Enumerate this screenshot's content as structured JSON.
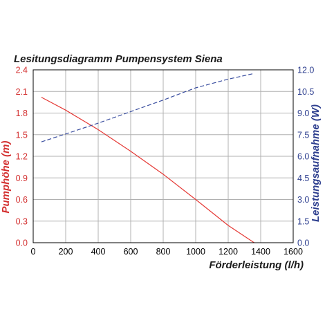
{
  "chart_data": {
    "type": "line",
    "title": "Lesitungsdiagramm Pumpensystem Siena",
    "xlabel": "Förderleistung (l/h)",
    "ylabel_left": "Pumphöhe (m)",
    "ylabel_right": "Leistungsaufnahme (W)",
    "xlim": [
      0,
      1600
    ],
    "ylim_left": [
      0,
      2.4
    ],
    "ylim_right": [
      0,
      12
    ],
    "x_ticks": [
      "0",
      "200",
      "400",
      "600",
      "800",
      "1000",
      "1200",
      "1400",
      "1600"
    ],
    "y_left_ticks": [
      "0.0",
      "0.3",
      "0.6",
      "0.9",
      "1.2",
      "1.5",
      "1.8",
      "2.1",
      "2.4"
    ],
    "y_right_ticks": [
      "0.0",
      "1.5",
      "3.0",
      "4.5",
      "6.0",
      "7.5",
      "9.0",
      "10.5",
      "12.0"
    ],
    "grid": true,
    "colors": {
      "left_axis": "#d32f2f",
      "right_axis": "#2e3f8f",
      "head_series": "#e53935",
      "power_series": "#3b4fa0",
      "grid": "#b0b0b0",
      "frame": "#000000"
    },
    "series": [
      {
        "axis": "left",
        "style": "solid",
        "x": [
          50,
          200,
          400,
          600,
          800,
          1000,
          1200,
          1360
        ],
        "y": [
          2.02,
          1.84,
          1.57,
          1.27,
          0.95,
          0.6,
          0.24,
          0.0
        ]
      },
      {
        "axis": "right",
        "style": "dashed",
        "x": [
          50,
          200,
          400,
          600,
          800,
          1000,
          1200,
          1360
        ],
        "y": [
          7.0,
          7.55,
          8.3,
          9.1,
          9.9,
          10.75,
          11.35,
          11.75
        ]
      }
    ]
  }
}
